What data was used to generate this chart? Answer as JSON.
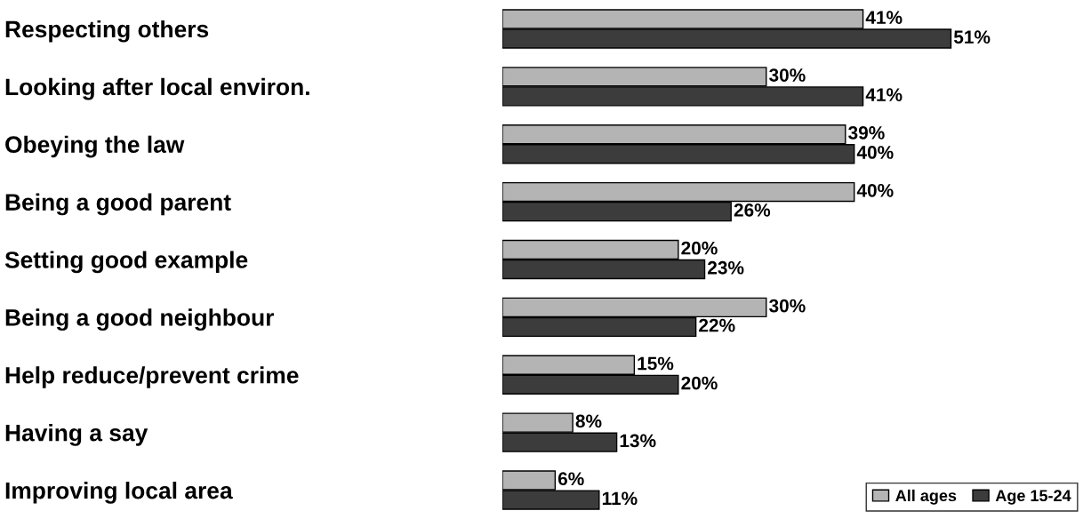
{
  "chart_data": {
    "type": "bar",
    "orientation": "horizontal",
    "legend": "bottom right",
    "categories": [
      "Respecting others",
      "Looking after local environ.",
      "Obeying the law",
      "Being a good parent",
      "Setting good example",
      "Being a good neighbour",
      "Help reduce/prevent crime",
      "Having a say",
      "Improving local area"
    ],
    "series": [
      {
        "name": "All ages",
        "color": "#b4b4b4",
        "values": [
          41,
          30,
          39,
          40,
          20,
          30,
          15,
          8,
          6
        ],
        "value_labels": [
          "41%",
          "30%",
          "39%",
          "40%",
          "20%",
          "30%",
          "15%",
          "8%",
          "6%"
        ]
      },
      {
        "name": "Age 15-24",
        "color": "#3c3c3c",
        "values": [
          51,
          41,
          40,
          26,
          23,
          22,
          20,
          13,
          11
        ],
        "value_labels": [
          "51%",
          "41%",
          "40%",
          "26%",
          "23%",
          "22%",
          "20%",
          "13%",
          "11%"
        ]
      }
    ]
  }
}
